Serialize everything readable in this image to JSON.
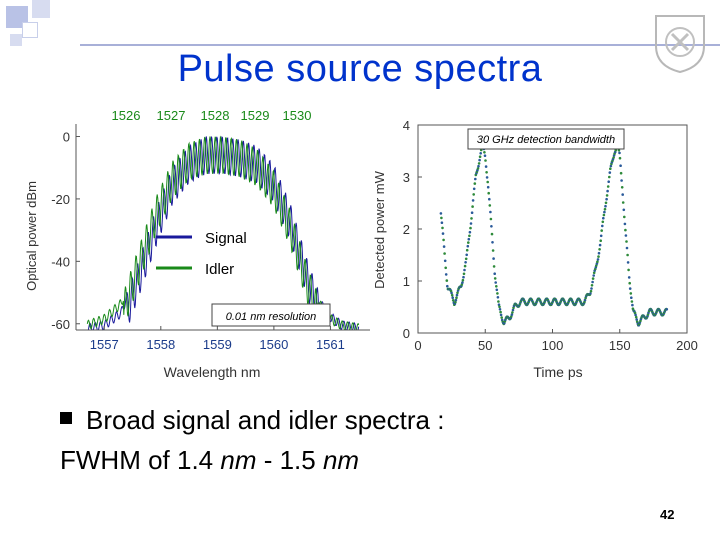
{
  "slide": {
    "title": "Pulse source spectra",
    "bullet_line1": "Broad signal and idler spectra :",
    "bullet_line2_prefix": "FWHM of 1.4 ",
    "bullet_unit1": "nm",
    "bullet_mid": " - 1.5 ",
    "bullet_unit2": "nm",
    "page_number": "42",
    "logo_icon": "university-seal-icon",
    "accent_color": "#0033cc"
  },
  "chart_data": [
    {
      "type": "line",
      "title": "",
      "xlabel": "Wavelength nm",
      "ylabel": "Optical power dBm",
      "x_ticks_bottom": [
        "1557",
        "1558",
        "1559",
        "1560",
        "1561"
      ],
      "x_ticks_top": [
        "1526",
        "1527",
        "1528",
        "1529",
        "1530"
      ],
      "y_ticks": [
        "0",
        "-20",
        "-40",
        "-60"
      ],
      "ylim": [
        -62,
        4
      ],
      "xlim": [
        1556.5,
        1561.7
      ],
      "annotation": "0.01 nm resolution",
      "legend_position": "center",
      "series": [
        {
          "name": "Signal",
          "color": "#1a1a9c",
          "x": [
            1556.7,
            1557.0,
            1557.3,
            1557.6,
            1557.9,
            1558.2,
            1558.5,
            1558.8,
            1559.1,
            1559.4,
            1559.7,
            1560.0,
            1560.3,
            1560.6,
            1560.9,
            1561.2,
            1561.5
          ],
          "y": [
            -60,
            -59,
            -55,
            -40,
            -24,
            -10,
            -3,
            0,
            0,
            -1,
            -3,
            -9,
            -22,
            -40,
            -55,
            -59,
            -60
          ]
        },
        {
          "name": "Idler",
          "color": "#1a8a1a",
          "x": [
            1556.7,
            1557.0,
            1557.3,
            1557.6,
            1557.9,
            1558.2,
            1558.5,
            1558.8,
            1559.1,
            1559.4,
            1559.7,
            1560.0,
            1560.3,
            1560.6,
            1560.9,
            1561.2,
            1561.5
          ],
          "y": [
            -59,
            -57,
            -52,
            -36,
            -20,
            -8,
            -2,
            0,
            0,
            -1,
            -4,
            -11,
            -24,
            -42,
            -56,
            -59,
            -60
          ]
        }
      ]
    },
    {
      "type": "scatter",
      "title": "",
      "xlabel": "Time ps",
      "ylabel": "Detected power mW",
      "x_ticks": [
        "0",
        "50",
        "100",
        "150",
        "200"
      ],
      "y_ticks": [
        "0",
        "1",
        "2",
        "3",
        "4"
      ],
      "xlim": [
        0,
        200
      ],
      "ylim": [
        0,
        4
      ],
      "annotation": "30 GHz detection bandwidth",
      "series": [
        {
          "name": "",
          "color": "#2a5a9a",
          "x": [
            17,
            22,
            27,
            32,
            36,
            40,
            43,
            46,
            48,
            50,
            52,
            54,
            57,
            60,
            64,
            68,
            72,
            76,
            80,
            85,
            90,
            95,
            100,
            105,
            110,
            115,
            120,
            124,
            128,
            132,
            136,
            140,
            143,
            146,
            148,
            150,
            152,
            154,
            157,
            160,
            164,
            168,
            172,
            176,
            180,
            185
          ],
          "y": [
            2.3,
            0.9,
            0.6,
            0.9,
            1.4,
            2.3,
            3.0,
            3.4,
            3.6,
            3.4,
            2.9,
            2.2,
            1.2,
            0.5,
            0.2,
            0.3,
            0.5,
            0.6,
            0.6,
            0.6,
            0.6,
            0.6,
            0.6,
            0.6,
            0.6,
            0.6,
            0.6,
            0.6,
            0.8,
            1.2,
            1.8,
            2.6,
            3.1,
            3.5,
            3.6,
            3.4,
            2.8,
            2.0,
            1.1,
            0.4,
            0.2,
            0.3,
            0.4,
            0.4,
            0.4,
            0.4
          ]
        }
      ]
    }
  ]
}
